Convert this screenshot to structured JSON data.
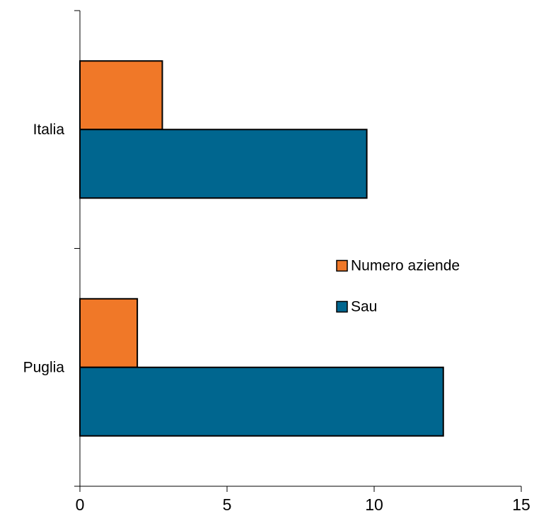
{
  "chart_data": {
    "type": "bar",
    "orientation": "horizontal",
    "categories": [
      "Italia",
      "Puglia"
    ],
    "series": [
      {
        "name": "Numero aziende",
        "values": [
          2.8,
          1.95
        ],
        "color": "#F07828"
      },
      {
        "name": "Sau",
        "values": [
          9.75,
          12.35
        ],
        "color": "#00668F"
      }
    ],
    "title": "",
    "xlabel": "",
    "ylabel": "",
    "xlim": [
      0,
      15
    ],
    "x_ticks": [
      0,
      5,
      10,
      15
    ],
    "x_tick_labels": [
      "0",
      "5",
      "10",
      "15"
    ],
    "grid": false,
    "legend_position": "right-center"
  }
}
